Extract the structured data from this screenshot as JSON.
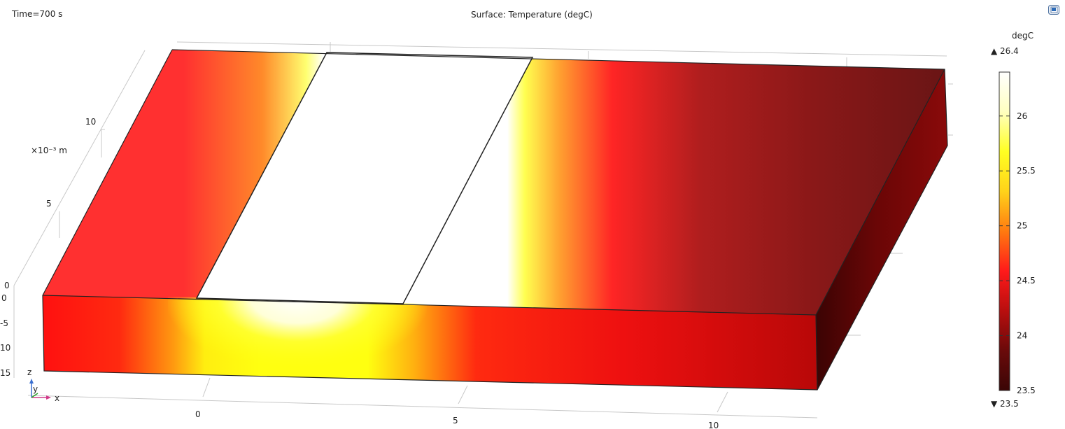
{
  "header": {
    "time_label": "Time=700 s",
    "plot_title": "Surface: Temperature (degC)"
  },
  "toolbar": {
    "export_icon": "export-image-icon"
  },
  "chart_data": {
    "type": "surface3d",
    "title": "Surface: Temperature (degC)",
    "time": "Time=700 s",
    "quantity": "Temperature",
    "unit": "degC",
    "axes": {
      "x": {
        "label": "x",
        "ticks": [
          "0",
          "5",
          "10"
        ]
      },
      "y": {
        "label": "y",
        "ticks": [
          "0",
          "5",
          "10"
        ],
        "exponent_label": "×10⁻³ m"
      },
      "z": {
        "label": "z",
        "ticks": [
          "0",
          "-5",
          "10",
          "15"
        ]
      }
    },
    "colorbar": {
      "title": "degC",
      "max_label": "▲ 26.4",
      "min_label": "▼ 23.5",
      "max": 26.4,
      "min": 23.5,
      "ticks": [
        "26",
        "25.5",
        "25",
        "24.5",
        "24",
        "23.5"
      ],
      "tick_values": [
        26,
        25.5,
        25,
        24.5,
        24,
        23.5
      ],
      "colormap": "thermal",
      "colormap_stops": [
        "#3a0606",
        "#6a0a0a",
        "#b80e0e",
        "#ff1a1a",
        "#ff7a10",
        "#ffd21a",
        "#ffff22",
        "#ffffc0",
        "#ffffff"
      ]
    },
    "surface_colors": {
      "hot_region": "#ffffff",
      "warm_band": "#ffff30",
      "mid": "#ff2a2a",
      "cool": "#6a1414"
    }
  }
}
